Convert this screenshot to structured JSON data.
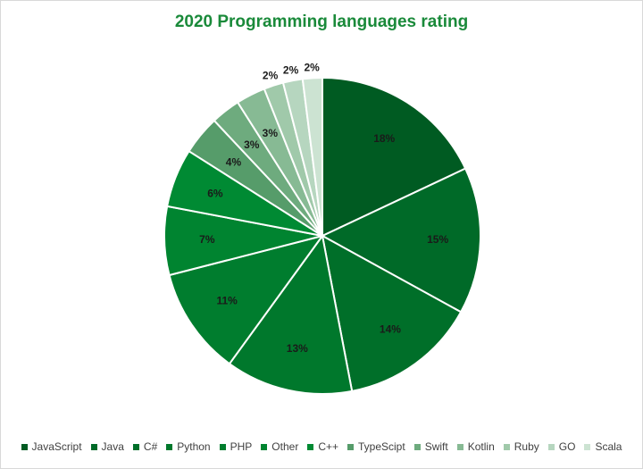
{
  "chart_data": {
    "type": "pie",
    "title": "2020 Programming languages rating",
    "categories": [
      "JavaScript",
      "Java",
      "C#",
      "Python",
      "PHP",
      "Other",
      "C++",
      "TypeScipt",
      "Swift",
      "Kotlin",
      "Ruby",
      "GO",
      "Scala"
    ],
    "values": [
      18,
      15,
      14,
      13,
      11,
      7,
      6,
      4,
      3,
      3,
      2,
      2,
      2
    ],
    "value_labels": [
      "18%",
      "15%",
      "14%",
      "13%",
      "11%",
      "7%",
      "6%",
      "4%",
      "3%",
      "3%",
      "2%",
      "2%",
      "2%"
    ],
    "colors": [
      "#005b22",
      "#006a28",
      "#006f29",
      "#00782c",
      "#007d2e",
      "#008430",
      "#008a33",
      "#569c6a",
      "#6eab7e",
      "#87ba94",
      "#a0c9aa",
      "#b6d6bf",
      "#cce3d2"
    ],
    "legend_position": "bottom",
    "start_angle_deg": 0,
    "direction": "clockwise"
  }
}
